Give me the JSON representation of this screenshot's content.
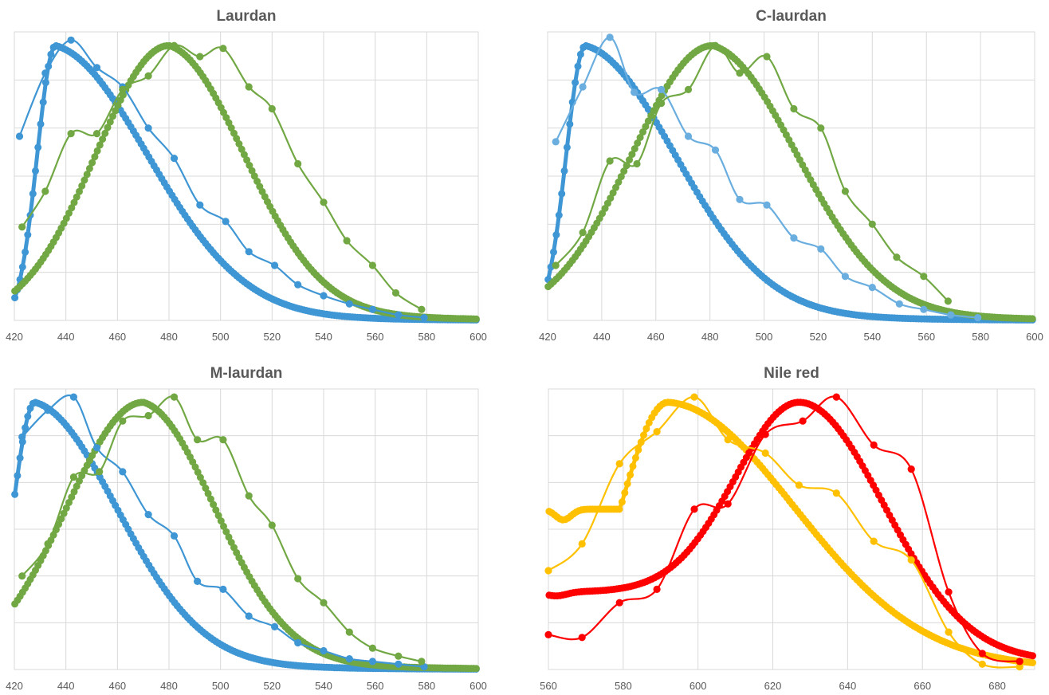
{
  "colors": {
    "blue": "#3f96d4",
    "light_blue": "#6aaee0",
    "green": "#72a844",
    "yellow": "#ffc000",
    "red": "#ff0000",
    "grid": "#d9d9d9",
    "text": "#595959"
  },
  "chart_data": [
    {
      "type": "line",
      "title": "Laurdan",
      "xlabel": "",
      "ylabel": "",
      "xlim": [
        420,
        600
      ],
      "ylim": [
        0,
        1.05
      ],
      "x_ticks": [
        "420",
        "440",
        "460",
        "480",
        "500",
        "520",
        "540",
        "560",
        "580",
        "600"
      ],
      "grid": true,
      "series": [
        {
          "role": "smooth",
          "color_key": "blue",
          "params": {
            "peak": 436,
            "lw": 10,
            "rw": 52,
            "base": 0.0
          }
        },
        {
          "role": "smooth",
          "color_key": "green",
          "params": {
            "peak": 480,
            "lw": 40,
            "rw": 42,
            "base": 0.0
          }
        },
        {
          "role": "measured",
          "color_key": "blue",
          "x": [
            422,
            432,
            442,
            452,
            462,
            472,
            482,
            492,
            502,
            511,
            521,
            530,
            540,
            550,
            559,
            569,
            579
          ],
          "y": [
            0.67,
            0.9,
            1.02,
            0.92,
            0.85,
            0.7,
            0.59,
            0.42,
            0.36,
            0.25,
            0.2,
            0.13,
            0.09,
            0.06,
            0.04,
            0.02,
            0.01
          ]
        },
        {
          "role": "measured",
          "color_key": "green",
          "x": [
            423,
            432,
            442,
            452,
            462,
            472,
            482,
            492,
            501,
            511,
            520,
            530,
            540,
            549,
            559,
            568,
            578
          ],
          "y": [
            0.34,
            0.47,
            0.68,
            0.68,
            0.84,
            0.89,
            1.0,
            0.96,
            0.99,
            0.85,
            0.77,
            0.57,
            0.43,
            0.29,
            0.2,
            0.1,
            0.04
          ]
        }
      ]
    },
    {
      "type": "line",
      "title": "C-laurdan",
      "xlabel": "",
      "ylabel": "",
      "xlim": [
        420,
        600
      ],
      "ylim": [
        0,
        1.05
      ],
      "x_ticks": [
        "420",
        "440",
        "460",
        "480",
        "500",
        "520",
        "540",
        "560",
        "580",
        "600"
      ],
      "grid": true,
      "series": [
        {
          "role": "smooth",
          "color_key": "blue",
          "params": {
            "peak": 434,
            "lw": 10,
            "rw": 48,
            "base": 0.0
          }
        },
        {
          "role": "smooth",
          "color_key": "green",
          "params": {
            "peak": 481,
            "lw": 42,
            "rw": 45,
            "base": 0.0
          }
        },
        {
          "role": "measured",
          "color_key": "light_blue",
          "x": [
            423,
            433,
            443,
            452,
            462,
            472,
            482,
            491,
            501,
            511,
            521,
            530,
            540,
            550,
            559,
            569,
            579
          ],
          "y": [
            0.65,
            0.85,
            1.03,
            0.83,
            0.84,
            0.67,
            0.62,
            0.44,
            0.42,
            0.3,
            0.26,
            0.16,
            0.12,
            0.06,
            0.04,
            0.02,
            0.01
          ]
        },
        {
          "role": "measured",
          "color_key": "green",
          "x": [
            423,
            433,
            443,
            453,
            462,
            472,
            482,
            491,
            501,
            511,
            521,
            530,
            540,
            549,
            559,
            568
          ],
          "y": [
            0.2,
            0.32,
            0.58,
            0.57,
            0.79,
            0.84,
            1.0,
            0.9,
            0.96,
            0.77,
            0.7,
            0.47,
            0.35,
            0.23,
            0.16,
            0.07
          ]
        }
      ]
    },
    {
      "type": "line",
      "title": "M-laurdan",
      "xlabel": "",
      "ylabel": "",
      "xlim": [
        420,
        600
      ],
      "ylim": [
        0,
        1.05
      ],
      "x_ticks": [
        "420",
        "440",
        "460",
        "480",
        "500",
        "520",
        "540",
        "560",
        "580",
        "600"
      ],
      "grid": true,
      "series": [
        {
          "role": "smooth",
          "color_key": "blue",
          "params": {
            "peak": 428,
            "lw": 12,
            "rw": 46,
            "base": 0.0
          }
        },
        {
          "role": "smooth",
          "color_key": "green",
          "params": {
            "peak": 470,
            "lw": 42,
            "rw": 40,
            "base": 0.0
          }
        },
        {
          "role": "measured",
          "color_key": "blue",
          "x": [
            423,
            433,
            443,
            452,
            462,
            472,
            482,
            491,
            501,
            511,
            521,
            530,
            540,
            550,
            559,
            569,
            579
          ],
          "y": [
            0.87,
            0.97,
            1.02,
            0.83,
            0.74,
            0.58,
            0.5,
            0.33,
            0.3,
            0.2,
            0.16,
            0.1,
            0.07,
            0.04,
            0.03,
            0.02,
            0.01
          ]
        },
        {
          "role": "measured",
          "color_key": "green",
          "x": [
            423,
            433,
            443,
            453,
            462,
            472,
            482,
            491,
            501,
            511,
            520,
            530,
            540,
            550,
            559,
            569,
            578
          ],
          "y": [
            0.35,
            0.47,
            0.72,
            0.74,
            0.93,
            0.95,
            1.02,
            0.86,
            0.86,
            0.65,
            0.54,
            0.34,
            0.25,
            0.14,
            0.08,
            0.05,
            0.03
          ]
        }
      ]
    },
    {
      "type": "line",
      "title": "Nile red",
      "xlabel": "",
      "ylabel": "",
      "xlim": [
        560,
        690
      ],
      "ylim": [
        0,
        1.05
      ],
      "x_ticks": [
        "560",
        "580",
        "600",
        "620",
        "640",
        "660",
        "680"
      ],
      "grid": true,
      "series": [
        {
          "role": "smooth",
          "color_key": "yellow",
          "params": {
            "peak": 592,
            "lw": 18,
            "rw": 48,
            "base": 0.0,
            "shoulder": true
          }
        },
        {
          "role": "smooth",
          "color_key": "red",
          "params": {
            "peak": 627,
            "lw": 24,
            "rw": 32,
            "base": 0.29,
            "low": 0.03
          }
        },
        {
          "role": "measured",
          "color_key": "yellow",
          "x": [
            560,
            569,
            579,
            589,
            599,
            608,
            618,
            627,
            637,
            647,
            657,
            667,
            676,
            686
          ],
          "y": [
            0.37,
            0.47,
            0.77,
            0.89,
            1.02,
            0.86,
            0.81,
            0.69,
            0.66,
            0.48,
            0.41,
            0.14,
            0.02,
            0.01
          ]
        },
        {
          "role": "measured",
          "color_key": "red",
          "x": [
            560,
            569,
            579,
            589,
            599,
            608,
            618,
            628,
            637,
            647,
            657,
            667,
            676,
            686
          ],
          "y": [
            0.13,
            0.12,
            0.25,
            0.3,
            0.6,
            0.62,
            0.88,
            0.93,
            1.02,
            0.84,
            0.75,
            0.29,
            0.06,
            0.03
          ]
        }
      ]
    }
  ]
}
